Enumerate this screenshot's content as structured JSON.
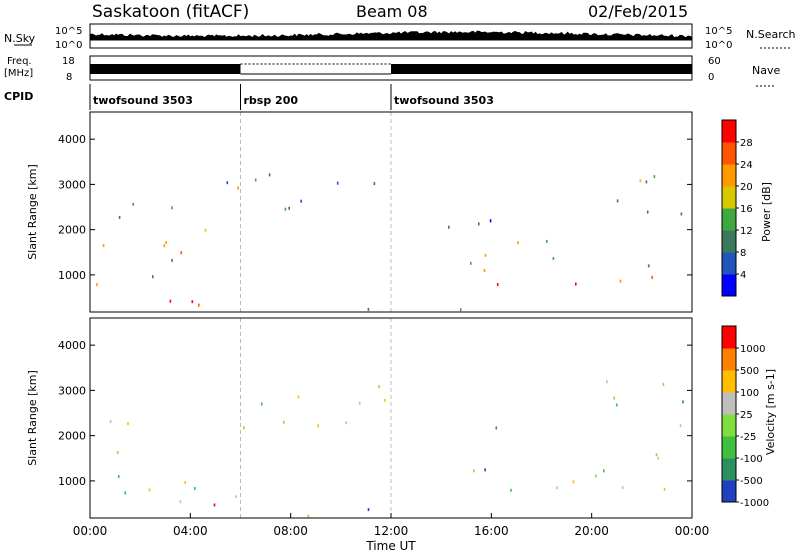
{
  "header": {
    "station": "Saskatoon (fitACF)",
    "beam": "Beam 08",
    "date": "02/Feb/2015"
  },
  "top_panels": {
    "nsky_label": "N.Sky",
    "nsky_ticks": [
      "10^5",
      "10^0"
    ],
    "nsearch_label": "N.Search",
    "nsearch_ticks": [
      "10^5",
      "10^0"
    ],
    "freq_label": "Freq.",
    "freq_unit": "[MHz]",
    "freq_ticks": [
      "18",
      "8"
    ],
    "nave_label": "Nave",
    "nave_ticks": [
      "60",
      "0"
    ],
    "cpid_label": "CPID",
    "cpid_segments": [
      {
        "label": "twofsound 3503",
        "start_hour": 0,
        "end_hour": 6
      },
      {
        "label": "rbsp 200",
        "start_hour": 6,
        "end_hour": 12
      },
      {
        "label": "twofsound 3503",
        "start_hour": 12,
        "end_hour": 24
      }
    ]
  },
  "x_axis": {
    "label": "Time UT",
    "ticks": [
      "00:00",
      "04:00",
      "08:00",
      "12:00",
      "16:00",
      "20:00",
      "00:00"
    ],
    "range_hours": [
      0,
      24
    ]
  },
  "chart_data": [
    {
      "type": "heatmap",
      "ylabel": "Slant Range [km]",
      "y_ticks": [
        "1000",
        "2000",
        "3000",
        "4000"
      ],
      "ylim": [
        180,
        4600
      ],
      "colorbar_label": "Power [dB]",
      "colorbar_ticks": [
        "4",
        "8",
        "12",
        "16",
        "20",
        "24",
        "28"
      ],
      "colors": [
        "#0000ff",
        "#2255bb",
        "#3a7a5a",
        "#40a840",
        "#d8c800",
        "#ff9900",
        "#ff5500",
        "#ff0000"
      ],
      "scatter_regions": [
        {
          "t0": 0.0,
          "t1": 6.0,
          "r0": 250,
          "r1": 650,
          "level": 0.92
        },
        {
          "t0": 0.0,
          "t1": 5.0,
          "r0": 650,
          "r1": 1700,
          "level": 0.55
        },
        {
          "t0": 1.0,
          "t1": 5.5,
          "r0": 1700,
          "r1": 2600,
          "level": 0.5
        },
        {
          "t0": 5.0,
          "t1": 7.0,
          "r0": 2200,
          "r1": 3400,
          "level": 0.45
        },
        {
          "t0": 7.0,
          "t1": 12.0,
          "r0": 2400,
          "r1": 3400,
          "level": 0.4
        },
        {
          "t0": 6.0,
          "t1": 12.0,
          "r0": 250,
          "r1": 450,
          "level": 0.35
        },
        {
          "t0": 12.0,
          "t1": 15.0,
          "r0": 250,
          "r1": 500,
          "level": 0.3
        },
        {
          "t0": 15.0,
          "t1": 24.0,
          "r0": 750,
          "r1": 1100,
          "level": 0.9
        },
        {
          "t0": 15.0,
          "t1": 24.0,
          "r0": 1100,
          "r1": 1800,
          "level": 0.5
        },
        {
          "t0": 14.0,
          "t1": 17.0,
          "r0": 1800,
          "r1": 2600,
          "level": 0.3
        },
        {
          "t0": 20.5,
          "t1": 24.0,
          "r0": 1800,
          "r1": 3400,
          "level": 0.35
        }
      ]
    },
    {
      "type": "heatmap",
      "ylabel": "Slant Range [km]",
      "y_ticks": [
        "1000",
        "2000",
        "3000",
        "4000"
      ],
      "ylim": [
        180,
        4600
      ],
      "colorbar_label": "Velocity [m s-1]",
      "colorbar_ticks": [
        "1000",
        "500",
        "100",
        "25",
        "-25",
        "-100",
        "-500",
        "-1000"
      ],
      "colors": [
        "#2040c0",
        "#2a9060",
        "#3fbf3f",
        "#7fdf3f",
        "#bfbfbf",
        "#ffbf00",
        "#ff7f00",
        "#ff0000"
      ],
      "scatter_regions": [
        {
          "t0": 0.0,
          "t1": 6.0,
          "r0": 250,
          "r1": 700,
          "level": 0.7
        },
        {
          "t0": 0.0,
          "t1": 5.0,
          "r0": 700,
          "r1": 1700,
          "level": 0.5
        },
        {
          "t0": 0.0,
          "t1": 2.0,
          "r0": 1700,
          "r1": 2600,
          "level": 0.6
        },
        {
          "t0": 5.0,
          "t1": 12.0,
          "r0": 2200,
          "r1": 3400,
          "level": 0.5
        },
        {
          "t0": 6.0,
          "t1": 11.0,
          "r0": 250,
          "r1": 450,
          "level": 0.3
        },
        {
          "t0": 11.0,
          "t1": 15.0,
          "r0": 250,
          "r1": 500,
          "level": 0.18
        },
        {
          "t0": 15.0,
          "t1": 17.0,
          "r0": 700,
          "r1": 2400,
          "level": 0.2
        },
        {
          "t0": 17.0,
          "t1": 24.0,
          "r0": 700,
          "r1": 1700,
          "level": 0.5
        },
        {
          "t0": 20.5,
          "t1": 24.0,
          "r0": 1800,
          "r1": 3400,
          "level": 0.3
        }
      ]
    }
  ]
}
